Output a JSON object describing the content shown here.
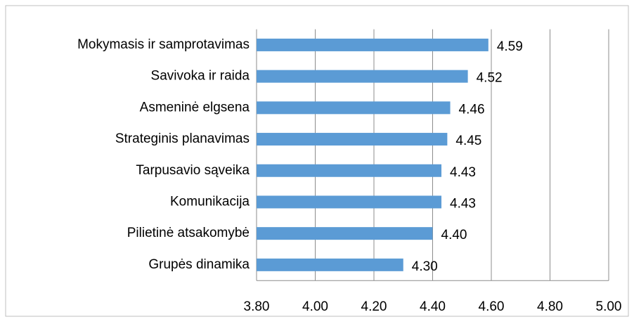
{
  "chart_data": {
    "type": "bar",
    "orientation": "horizontal",
    "categories": [
      "Mokymasis ir samprotavimas",
      "Savivoka ir raida",
      "Asmeninė elgsena",
      "Strateginis planavimas",
      "Tarpusavio sąveika",
      "Komunikacija",
      "Pilietinė atsakomybė",
      "Grupės dinamika"
    ],
    "values": [
      4.59,
      4.52,
      4.46,
      4.45,
      4.43,
      4.43,
      4.4,
      4.3
    ],
    "value_labels": [
      "4.59",
      "4.52",
      "4.46",
      "4.45",
      "4.43",
      "4.43",
      "4.40",
      "4.30"
    ],
    "color": "#5b9bd5",
    "xlim": [
      3.8,
      5.0
    ],
    "xticks": [
      {
        "value": 3.8,
        "label": "3.80"
      },
      {
        "value": 4.0,
        "label": "4.00"
      },
      {
        "value": 4.2,
        "label": "4.20"
      },
      {
        "value": 4.4,
        "label": "4.40"
      },
      {
        "value": 4.6,
        "label": "4.60"
      },
      {
        "value": 4.8,
        "label": "4.80"
      },
      {
        "value": 5.0,
        "label": "5.00"
      }
    ],
    "grid": true
  }
}
